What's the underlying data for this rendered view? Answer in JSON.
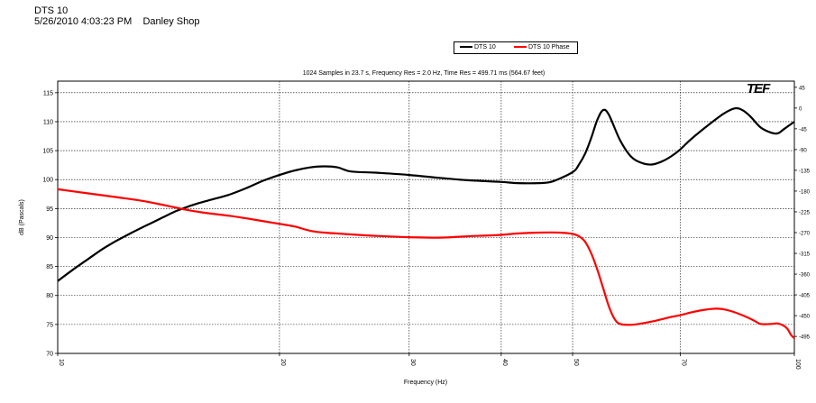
{
  "header": {
    "line1": "DTS 10",
    "line2": "5/26/2010 4:03:23 PM    Danley Shop"
  },
  "legend": {
    "items": [
      {
        "label": "DTS 10",
        "color": "#000000"
      },
      {
        "label": "DTS 10  Phase",
        "color": "#ff0000"
      }
    ]
  },
  "logo_text": "TEF",
  "chart_data": {
    "type": "line",
    "title": "1024 Samples in 23.7 s, Frequency Res = 2.0 Hz, Time Res = 499.71 ms (564.67 feet)",
    "xlabel": "Frequency (Hz)",
    "ylabel": "dB (Pascals)",
    "x_scale": "log",
    "xlim": [
      10,
      100
    ],
    "x_ticks": [
      10,
      20,
      30,
      40,
      50,
      70,
      100
    ],
    "ylim": [
      70,
      117
    ],
    "y_ticks": [
      70,
      75,
      80,
      85,
      90,
      95,
      100,
      105,
      110,
      115
    ],
    "y2_ticks": [
      45,
      0,
      -45,
      -90,
      -135,
      -180,
      -225,
      -270,
      -315,
      -360,
      -405,
      -450,
      -495
    ],
    "y2lim": [
      -531.9,
      58.3
    ],
    "grid": true,
    "series": [
      {
        "name": "DTS 10",
        "color": "#000000",
        "axis": "left",
        "x": [
          10,
          10.5,
          11,
          11.5,
          12,
          12.5,
          13,
          13.5,
          14,
          14.5,
          15,
          15.5,
          16,
          17,
          18,
          19,
          20,
          21,
          22,
          23,
          24,
          25,
          27,
          30,
          33,
          36,
          40,
          42,
          45,
          47,
          50,
          51,
          52,
          53,
          54,
          55,
          56,
          58,
          60,
          62,
          64,
          66,
          68,
          70,
          72,
          75,
          80,
          83,
          85,
          87,
          90,
          93,
          95,
          97,
          100
        ],
        "y": [
          82.5,
          84.5,
          86.3,
          88.0,
          89.4,
          90.6,
          91.7,
          92.7,
          93.7,
          94.6,
          95.3,
          95.9,
          96.4,
          97.3,
          98.5,
          99.8,
          100.8,
          101.6,
          102.1,
          102.3,
          102.1,
          101.4,
          101.2,
          100.8,
          100.3,
          99.9,
          99.6,
          99.4,
          99.4,
          99.7,
          101.3,
          102.6,
          104.5,
          107.2,
          110.3,
          112.0,
          111.2,
          106.8,
          104.0,
          102.9,
          102.6,
          103.1,
          104.0,
          105.2,
          106.7,
          108.6,
          111.3,
          112.3,
          112.0,
          111.0,
          109.0,
          108.1,
          108.0,
          108.8,
          110.0
        ]
      },
      {
        "name": "DTS 10  Phase",
        "color": "#ff0000",
        "axis": "right",
        "x": [
          10,
          11,
          12,
          13,
          14,
          15,
          16,
          17,
          18,
          20,
          21,
          22,
          23,
          24,
          25,
          27,
          30,
          33,
          36,
          40,
          42,
          45,
          48,
          50,
          51,
          52,
          53,
          54,
          55,
          56,
          57,
          58,
          60,
          62,
          64,
          66,
          68,
          70,
          72,
          75,
          78,
          80,
          82,
          85,
          88,
          90,
          93,
          95,
          97,
          98,
          99,
          100
        ],
        "y": [
          -176,
          -185,
          -193,
          -201,
          -211,
          -221,
          -228,
          -233,
          -239,
          -251,
          -257,
          -266,
          -270,
          -272,
          -274,
          -277,
          -280,
          -281,
          -278,
          -275,
          -272,
          -270,
          -270,
          -273,
          -278,
          -290,
          -315,
          -350,
          -390,
          -430,
          -457,
          -468,
          -470,
          -467,
          -463,
          -458,
          -453,
          -449,
          -444,
          -438,
          -435,
          -436,
          -440,
          -449,
          -460,
          -468,
          -468,
          -467,
          -473,
          -480,
          -492,
          -499
        ]
      }
    ]
  }
}
